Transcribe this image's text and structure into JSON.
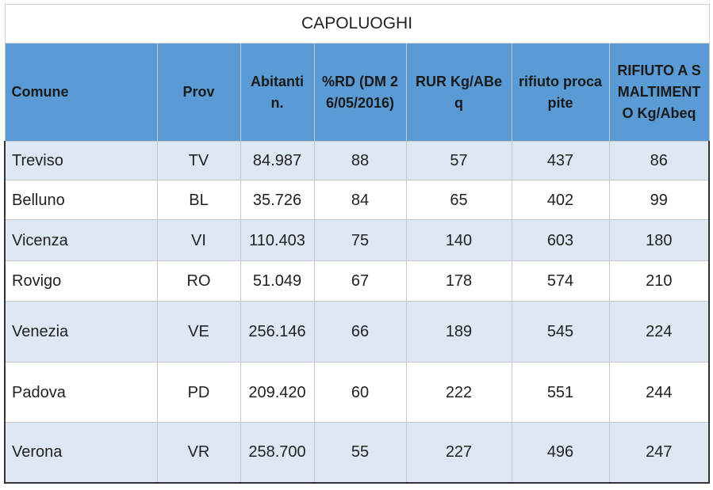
{
  "table": {
    "title": "CAPOLUOGHI",
    "header": [
      "Comune",
      "Prov",
      "Abitanti n.",
      "%RD (DM 26/05/2016)",
      "RUR Kg/ABeq",
      "rifiuto procapite",
      "RIFIUTO A SMALTIMENTO Kg/Abeq"
    ],
    "rows": [
      [
        "Treviso",
        "TV",
        "84.987",
        88,
        57,
        437,
        86
      ],
      [
        "Belluno",
        "BL",
        "35.726",
        84,
        65,
        402,
        99
      ],
      [
        "Vicenza",
        "VI",
        "110.403",
        75,
        140,
        603,
        180
      ],
      [
        "Rovigo",
        "RO",
        "51.049",
        67,
        178,
        574,
        210
      ],
      [
        "Venezia",
        "VE",
        "256.146",
        66,
        189,
        545,
        224
      ],
      [
        "Padova",
        "PD",
        "209.420",
        60,
        222,
        551,
        244
      ],
      [
        "Verona",
        "VR",
        "258.700",
        55,
        227,
        496,
        247
      ]
    ]
  }
}
